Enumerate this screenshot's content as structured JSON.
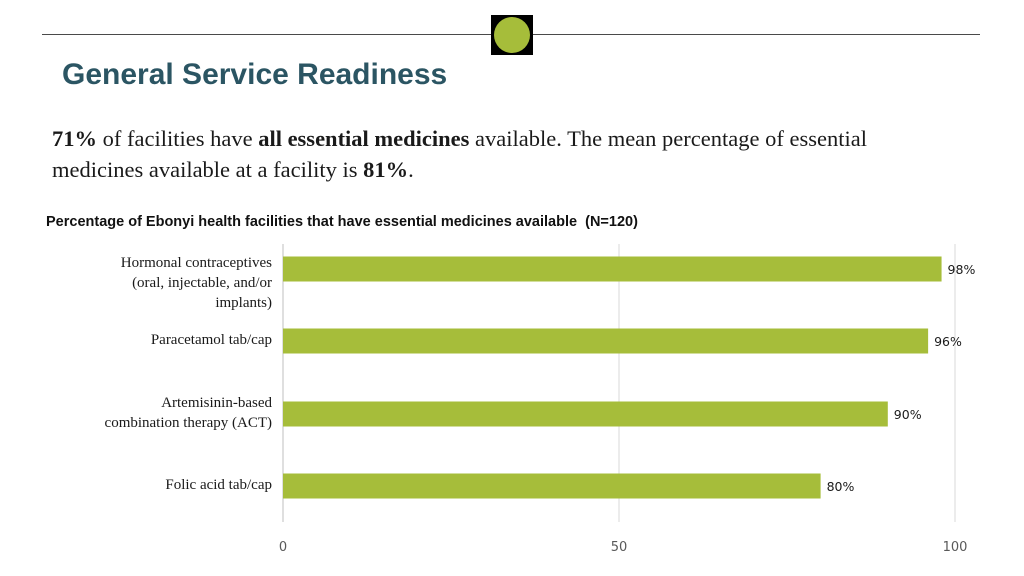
{
  "page": {
    "title": "General Service Readiness",
    "summary": {
      "stat_1": "71%",
      "text_1": " of facilities have ",
      "emphasis": "all essential medicines",
      "text_2": " available. The mean percentage of essential medicines available at a facility is ",
      "stat_2": "81%",
      "text_3": "."
    }
  },
  "colors": {
    "title": "#2b5563",
    "bar": "#a6bd3a",
    "logo_accent": "#a6bd3a",
    "gridline": "#d9d9d9"
  },
  "chart_data": {
    "type": "bar",
    "orientation": "horizontal",
    "title": "Percentage of Ebonyi health facilities that have essential medicines available  (N=120)",
    "categories": [
      "Hormonal contraceptives\n(oral, injectable, and/or\nimplants)",
      "Paracetamol tab/cap",
      "Artemisinin-based\ncombination therapy (ACT)",
      "Folic acid tab/cap"
    ],
    "values": [
      98,
      96,
      90,
      80
    ],
    "data_labels": [
      "98%",
      "96%",
      "90%",
      "80%"
    ],
    "xlim": [
      0,
      100
    ],
    "xticks": [
      0,
      50,
      100
    ],
    "xtick_labels": [
      "0",
      "50",
      "100"
    ],
    "grid": true,
    "legend": "none"
  }
}
